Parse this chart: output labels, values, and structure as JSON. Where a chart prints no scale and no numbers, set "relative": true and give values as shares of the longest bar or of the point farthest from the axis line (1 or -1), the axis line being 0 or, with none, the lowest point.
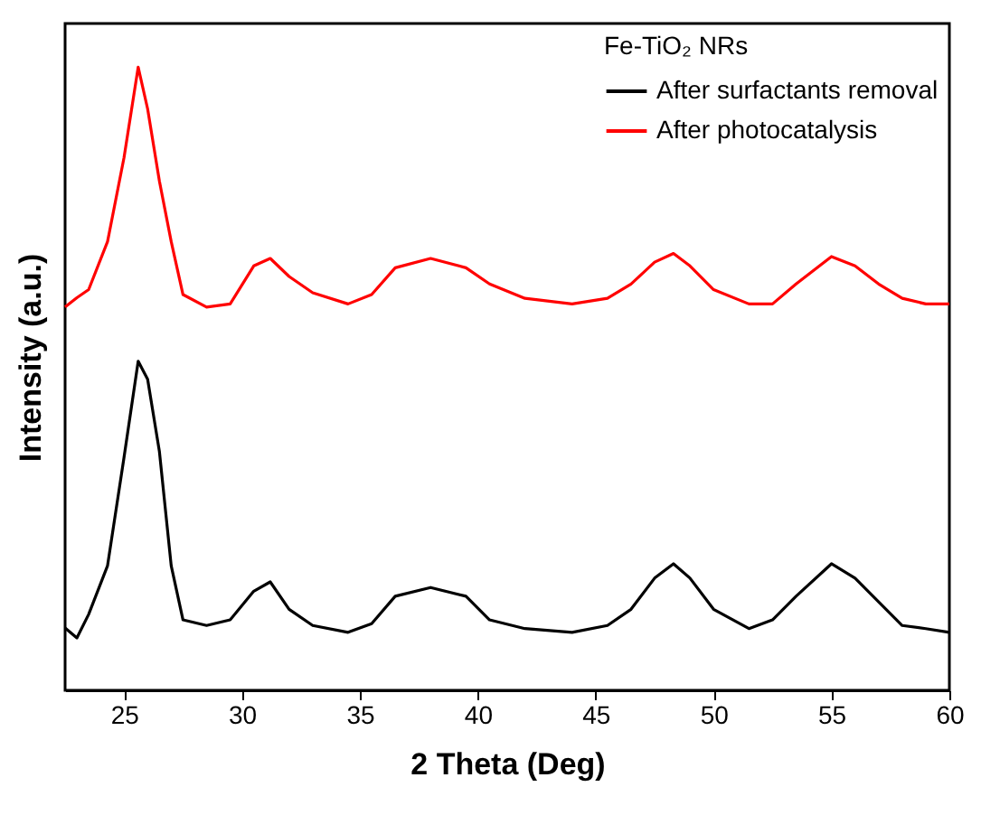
{
  "chart_data": {
    "type": "line",
    "relative": true,
    "xlabel": "2 Theta (Deg)",
    "ylabel": "Intensity (a.u.)",
    "legend_title": "Fe-TiO₂ NRs",
    "legend": "top right",
    "xlim": [
      22.5,
      60
    ],
    "xticks": [
      25,
      30,
      35,
      40,
      45,
      50,
      55,
      60
    ],
    "x": [
      22.5,
      23.0,
      23.5,
      24.3,
      25.0,
      25.6,
      26.0,
      26.5,
      27.0,
      27.5,
      28.5,
      29.5,
      30.5,
      31.2,
      32.0,
      33.0,
      34.5,
      35.5,
      36.5,
      38.0,
      39.5,
      40.5,
      42.0,
      44.0,
      45.5,
      46.5,
      47.5,
      48.3,
      49.0,
      50.0,
      51.5,
      52.5,
      53.5,
      55.0,
      56.0,
      57.0,
      58.0,
      59.0,
      60.0
    ],
    "series": [
      {
        "name": "After surfactants removal",
        "color": "#000000",
        "values": [
          0.1,
          0.084,
          0.122,
          0.2,
          0.374,
          0.528,
          0.499,
          0.383,
          0.2,
          0.113,
          0.104,
          0.113,
          0.159,
          0.174,
          0.13,
          0.104,
          0.093,
          0.107,
          0.151,
          0.165,
          0.151,
          0.113,
          0.099,
          0.093,
          0.104,
          0.13,
          0.18,
          0.203,
          0.18,
          0.13,
          0.099,
          0.113,
          0.151,
          0.203,
          0.18,
          0.142,
          0.104,
          0.099,
          0.093
        ]
      },
      {
        "name": "After photocatalysis",
        "color": "#ff0000",
        "values": [
          0.615,
          0.63,
          0.643,
          0.72,
          0.855,
          1,
          0.933,
          0.817,
          0.72,
          0.635,
          0.615,
          0.62,
          0.681,
          0.693,
          0.664,
          0.638,
          0.62,
          0.635,
          0.678,
          0.693,
          0.678,
          0.652,
          0.629,
          0.62,
          0.629,
          0.652,
          0.687,
          0.701,
          0.681,
          0.643,
          0.62,
          0.62,
          0.652,
          0.696,
          0.681,
          0.652,
          0.629,
          0.62,
          0.62
        ]
      }
    ]
  }
}
